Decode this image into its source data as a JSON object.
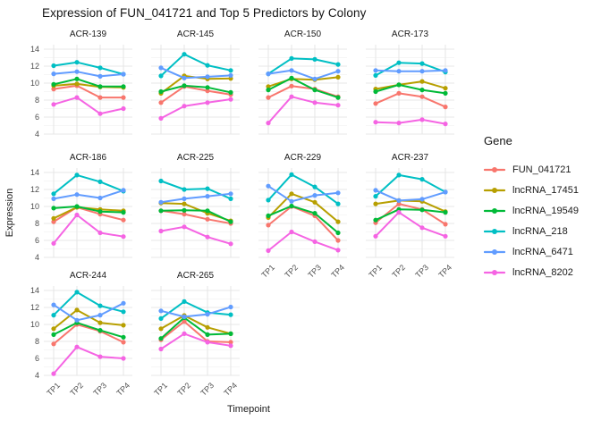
{
  "title": "Expression of FUN_041721 and Top 5 Predictors by Colony",
  "axes": {
    "x_title": "Timepoint",
    "y_title": "Expression",
    "x_ticks": [
      "TP1",
      "TP2",
      "TP3",
      "TP4"
    ],
    "y_ticks": [
      "14",
      "12",
      "10",
      "8",
      "6",
      "4"
    ]
  },
  "legend": {
    "title": "Gene",
    "items": [
      {
        "label": "FUN_041721",
        "color": "#F8766D"
      },
      {
        "label": "lncRNA_17451",
        "color": "#B79F00"
      },
      {
        "label": "lncRNA_19549",
        "color": "#00BA38"
      },
      {
        "label": "lncRNA_218",
        "color": "#00BFC4"
      },
      {
        "label": "lncRNA_6471",
        "color": "#619CFF"
      },
      {
        "label": "lncRNA_8202",
        "color": "#F564E3"
      }
    ]
  },
  "chart_data": {
    "type": "line",
    "title": "Expression of FUN_041721 and Top 5 Predictors by Colony",
    "xlabel": "Timepoint",
    "ylabel": "Expression",
    "x": [
      "TP1",
      "TP2",
      "TP3",
      "TP4"
    ],
    "ylim": [
      4,
      14
    ],
    "y_major_gridlines": [
      4,
      6,
      8,
      10,
      12,
      14
    ],
    "y_minor_gridlines": [
      5,
      7,
      9,
      11,
      13
    ],
    "grid": true,
    "legend_position": "right",
    "facet_by": "Colony",
    "facets": [
      {
        "name": "ACR-139",
        "series": [
          {
            "name": "FUN_041721",
            "values": [
              9.3,
              9.7,
              8.3,
              8.3
            ]
          },
          {
            "name": "lncRNA_17451",
            "values": [
              9.7,
              9.9,
              9.55,
              9.5
            ]
          },
          {
            "name": "lncRNA_19549",
            "values": [
              9.85,
              10.5,
              9.6,
              9.6
            ]
          },
          {
            "name": "lncRNA_218",
            "values": [
              12.05,
              12.45,
              11.8,
              11.05
            ]
          },
          {
            "name": "lncRNA_6471",
            "values": [
              11.1,
              11.35,
              10.8,
              11.05
            ]
          },
          {
            "name": "lncRNA_8202",
            "values": [
              7.5,
              8.3,
              6.4,
              7.0
            ]
          }
        ]
      },
      {
        "name": "ACR-145",
        "series": [
          {
            "name": "FUN_041721",
            "values": [
              7.7,
              9.6,
              9.1,
              8.65
            ]
          },
          {
            "name": "lncRNA_17451",
            "values": [
              8.8,
              10.85,
              10.5,
              10.55
            ]
          },
          {
            "name": "lncRNA_19549",
            "values": [
              9.0,
              9.7,
              9.5,
              8.9
            ]
          },
          {
            "name": "lncRNA_218",
            "values": [
              10.85,
              13.4,
              12.1,
              11.5
            ]
          },
          {
            "name": "lncRNA_6471",
            "values": [
              11.8,
              10.6,
              10.75,
              10.9
            ]
          },
          {
            "name": "lncRNA_8202",
            "values": [
              5.85,
              7.3,
              7.7,
              8.1
            ]
          }
        ]
      },
      {
        "name": "ACR-150",
        "series": [
          {
            "name": "FUN_041721",
            "values": [
              8.3,
              9.65,
              9.3,
              8.4
            ]
          },
          {
            "name": "lncRNA_17451",
            "values": [
              9.6,
              10.5,
              10.4,
              10.7
            ]
          },
          {
            "name": "lncRNA_19549",
            "values": [
              9.2,
              10.6,
              9.2,
              8.3
            ]
          },
          {
            "name": "lncRNA_218",
            "values": [
              11.1,
              12.9,
              12.8,
              12.2
            ]
          },
          {
            "name": "lncRNA_6471",
            "values": [
              11.1,
              11.5,
              10.5,
              11.4
            ]
          },
          {
            "name": "lncRNA_8202",
            "values": [
              5.3,
              8.4,
              7.7,
              7.4
            ]
          }
        ]
      },
      {
        "name": "ACR-173",
        "series": [
          {
            "name": "FUN_041721",
            "values": [
              7.6,
              8.8,
              8.4,
              7.2
            ]
          },
          {
            "name": "lncRNA_17451",
            "values": [
              9.3,
              9.8,
              10.2,
              9.4
            ]
          },
          {
            "name": "lncRNA_19549",
            "values": [
              9.0,
              9.8,
              9.2,
              8.8
            ]
          },
          {
            "name": "lncRNA_218",
            "values": [
              10.9,
              12.4,
              12.3,
              11.3
            ]
          },
          {
            "name": "lncRNA_6471",
            "values": [
              11.5,
              11.4,
              11.4,
              11.5
            ]
          },
          {
            "name": "lncRNA_8202",
            "values": [
              5.4,
              5.3,
              5.7,
              5.2
            ]
          }
        ]
      },
      {
        "name": "ACR-186",
        "series": [
          {
            "name": "FUN_041721",
            "values": [
              8.2,
              9.9,
              9.1,
              8.4
            ]
          },
          {
            "name": "lncRNA_17451",
            "values": [
              8.6,
              9.9,
              9.65,
              9.5
            ]
          },
          {
            "name": "lncRNA_19549",
            "values": [
              9.8,
              10.0,
              9.4,
              9.3
            ]
          },
          {
            "name": "lncRNA_218",
            "values": [
              11.5,
              13.7,
              12.9,
              11.8
            ]
          },
          {
            "name": "lncRNA_6471",
            "values": [
              10.9,
              11.4,
              11.0,
              11.9
            ]
          },
          {
            "name": "lncRNA_8202",
            "values": [
              5.65,
              9.0,
              6.9,
              6.45
            ]
          }
        ]
      },
      {
        "name": "ACR-225",
        "series": [
          {
            "name": "FUN_041721",
            "values": [
              9.5,
              9.1,
              8.5,
              8.0
            ]
          },
          {
            "name": "lncRNA_17451",
            "values": [
              10.4,
              10.3,
              9.2,
              8.3
            ]
          },
          {
            "name": "lncRNA_19549",
            "values": [
              9.5,
              9.55,
              9.5,
              8.2
            ]
          },
          {
            "name": "lncRNA_218",
            "values": [
              13.0,
              12.0,
              12.1,
              10.9
            ]
          },
          {
            "name": "lncRNA_6471",
            "values": [
              10.5,
              10.9,
              11.2,
              11.5
            ]
          },
          {
            "name": "lncRNA_8202",
            "values": [
              7.1,
              7.6,
              6.4,
              5.6
            ]
          }
        ]
      },
      {
        "name": "ACR-229",
        "series": [
          {
            "name": "FUN_041721",
            "values": [
              7.8,
              10.0,
              8.9,
              6.0
            ]
          },
          {
            "name": "lncRNA_17451",
            "values": [
              8.7,
              11.5,
              10.5,
              8.2
            ]
          },
          {
            "name": "lncRNA_19549",
            "values": [
              8.9,
              10.05,
              9.2,
              6.9
            ]
          },
          {
            "name": "lncRNA_218",
            "values": [
              10.75,
              13.75,
              12.3,
              10.3
            ]
          },
          {
            "name": "lncRNA_6471",
            "values": [
              12.4,
              10.6,
              11.3,
              11.6
            ]
          },
          {
            "name": "lncRNA_8202",
            "values": [
              4.8,
              7.0,
              5.85,
              4.85
            ]
          }
        ]
      },
      {
        "name": "ACR-237",
        "series": [
          {
            "name": "FUN_041721",
            "values": [
              8.1,
              10.3,
              9.65,
              7.9
            ]
          },
          {
            "name": "lncRNA_17451",
            "values": [
              10.3,
              10.7,
              10.6,
              9.4
            ]
          },
          {
            "name": "lncRNA_19549",
            "values": [
              8.4,
              9.65,
              9.6,
              9.3
            ]
          },
          {
            "name": "lncRNA_218",
            "values": [
              11.2,
              13.7,
              13.2,
              11.7
            ]
          },
          {
            "name": "lncRNA_6471",
            "values": [
              11.9,
              10.7,
              10.85,
              11.7
            ]
          },
          {
            "name": "lncRNA_8202",
            "values": [
              6.5,
              9.3,
              7.5,
              6.5
            ]
          }
        ]
      },
      {
        "name": "ACR-244",
        "series": [
          {
            "name": "FUN_041721",
            "values": [
              7.7,
              10.0,
              9.2,
              7.9
            ]
          },
          {
            "name": "lncRNA_17451",
            "values": [
              9.5,
              11.7,
              10.2,
              9.9
            ]
          },
          {
            "name": "lncRNA_19549",
            "values": [
              8.8,
              10.2,
              9.3,
              8.5
            ]
          },
          {
            "name": "lncRNA_218",
            "values": [
              11.1,
              13.8,
              12.2,
              11.5
            ]
          },
          {
            "name": "lncRNA_6471",
            "values": [
              12.3,
              10.5,
              11.1,
              12.5
            ]
          },
          {
            "name": "lncRNA_8202",
            "values": [
              4.2,
              7.35,
              6.2,
              6.0
            ]
          }
        ]
      },
      {
        "name": "ACR-265",
        "series": [
          {
            "name": "FUN_041721",
            "values": [
              8.2,
              10.35,
              8.0,
              7.9
            ]
          },
          {
            "name": "lncRNA_17451",
            "values": [
              9.5,
              11.05,
              9.65,
              8.9
            ]
          },
          {
            "name": "lncRNA_19549",
            "values": [
              8.35,
              10.8,
              8.8,
              8.9
            ]
          },
          {
            "name": "lncRNA_218",
            "values": [
              10.7,
              12.7,
              11.4,
              11.15
            ]
          },
          {
            "name": "lncRNA_6471",
            "values": [
              11.6,
              10.9,
              11.2,
              12.05
            ]
          },
          {
            "name": "lncRNA_8202",
            "values": [
              7.1,
              8.9,
              7.9,
              7.5
            ]
          }
        ]
      }
    ]
  }
}
